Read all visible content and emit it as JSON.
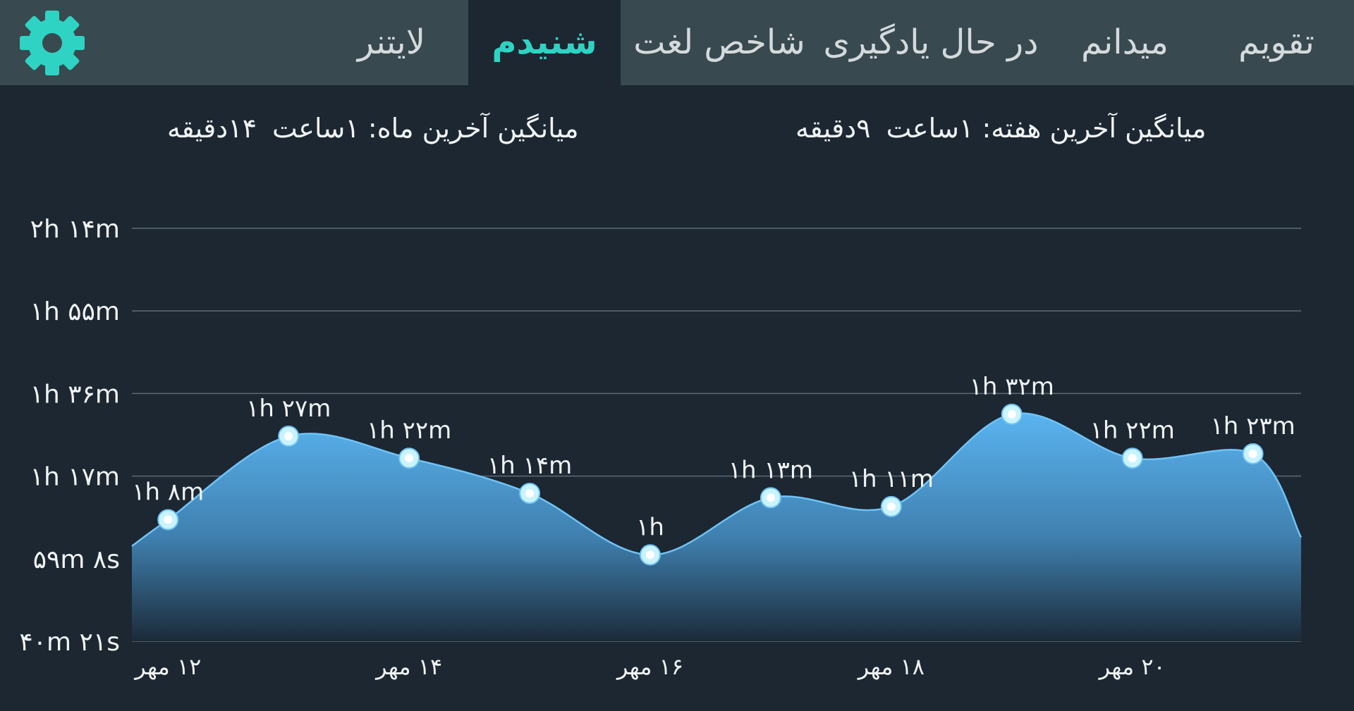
{
  "tabs": [
    {
      "label": "تقویم"
    },
    {
      "label": "میدانم"
    },
    {
      "label": "در حال یادگیری"
    },
    {
      "label": "شاخص لغت"
    },
    {
      "label": "شنیدم",
      "active": true
    },
    {
      "label": "لایتنر"
    }
  ],
  "settings_icon": "gear-icon",
  "stats": {
    "week_label": "میانگین آخرین هفته:",
    "week_hours": "۱ساعت",
    "week_minutes": "۹دقیقه",
    "month_label": "میانگین آخرین ماه:",
    "month_hours": "۱ساعت",
    "month_minutes": "۱۴دقیقه"
  },
  "colors": {
    "accent": "#2fd3c3",
    "tab_bar": "#38494f",
    "background": "#1c2731",
    "area_top": "#5ab4f0",
    "area_bottom": "#1c2a38",
    "point": "#c9f3ff"
  },
  "chart_data": {
    "type": "area",
    "y_ticks": [
      "۴۰m ۲۱s",
      "۵۹m ۸s",
      "۱h ۱۷m",
      "۱h ۳۶m",
      "۱h ۵۵m",
      "۲h ۱۴m"
    ],
    "x_labels": [
      "۱۲ مهر",
      "۱۴ مهر",
      "۱۶ مهر",
      "۱۸ مهر",
      "۲۰ مهر"
    ],
    "ylim_minutes": [
      40.35,
      134.3
    ],
    "grid": true,
    "points": [
      {
        "day": 12,
        "minutes": 68,
        "label": "۱h ۸m"
      },
      {
        "day": 13,
        "minutes": 87,
        "label": "۱h ۲۷m"
      },
      {
        "day": 14,
        "minutes": 82,
        "label": "۱h ۲۲m"
      },
      {
        "day": 15,
        "minutes": 74,
        "label": "۱h ۱۴m"
      },
      {
        "day": 16,
        "minutes": 60,
        "label": "۱h"
      },
      {
        "day": 17,
        "minutes": 73,
        "label": "۱h ۱۳m"
      },
      {
        "day": 18,
        "minutes": 71,
        "label": "۱h ۱۱m"
      },
      {
        "day": 19,
        "minutes": 92,
        "label": "۱h ۳۲m"
      },
      {
        "day": 20,
        "minutes": 82,
        "label": "۱h ۲۲m"
      },
      {
        "day": 21,
        "minutes": 83,
        "label": "۱h ۲۳m"
      }
    ]
  }
}
